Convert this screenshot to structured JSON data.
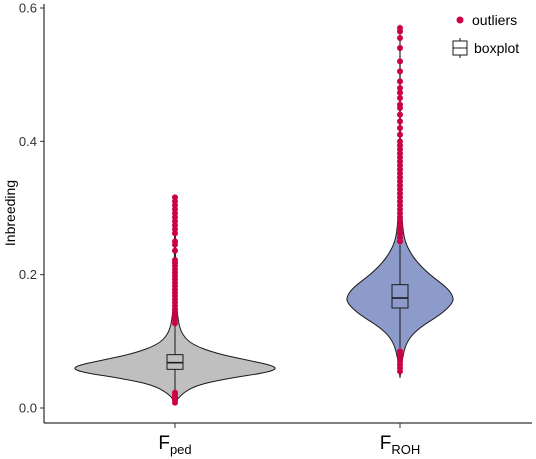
{
  "chart_data": {
    "type": "violin",
    "ylabel": "Inbreeding",
    "ylim": [
      0.0,
      0.6
    ],
    "y_ticks": [
      0.0,
      0.2,
      0.4,
      0.6
    ],
    "y_tick_labels": [
      "0.0",
      "0.2",
      "0.4",
      "0.6"
    ],
    "grid": false,
    "legend_placement": "top-right",
    "legend": [
      {
        "key": "outliers",
        "label": "outliers"
      },
      {
        "key": "boxplot",
        "label": "boxplot"
      }
    ],
    "categories": [
      {
        "main": "F",
        "sub": "ped",
        "fill": "#bfbfbf",
        "min": 0.008,
        "max": 0.32,
        "box": {
          "q1": 0.058,
          "median": 0.068,
          "q3": 0.08,
          "lower_whisker": 0.025,
          "upper_whisker": 0.125
        },
        "density": [
          [
            0.008,
            0.0
          ],
          [
            0.02,
            0.05
          ],
          [
            0.035,
            0.22
          ],
          [
            0.045,
            0.55
          ],
          [
            0.052,
            0.85
          ],
          [
            0.058,
            1.0
          ],
          [
            0.064,
            0.95
          ],
          [
            0.072,
            0.7
          ],
          [
            0.082,
            0.4
          ],
          [
            0.095,
            0.17
          ],
          [
            0.11,
            0.07
          ],
          [
            0.13,
            0.03
          ],
          [
            0.16,
            0.015
          ],
          [
            0.2,
            0.008
          ],
          [
            0.25,
            0.004
          ],
          [
            0.32,
            0.0
          ]
        ],
        "outliers_low": [
          0.008,
          0.012,
          0.016,
          0.02,
          0.023
        ],
        "outliers_high": [
          0.127,
          0.132,
          0.138,
          0.143,
          0.148,
          0.153,
          0.158,
          0.163,
          0.168,
          0.173,
          0.178,
          0.183,
          0.188,
          0.193,
          0.198,
          0.203,
          0.208,
          0.213,
          0.218,
          0.222,
          0.236,
          0.245,
          0.25,
          0.262,
          0.268,
          0.274,
          0.28,
          0.286,
          0.292,
          0.298,
          0.304,
          0.31,
          0.316
        ]
      },
      {
        "main": "F",
        "sub": "ROH",
        "fill": "#8c9bc9",
        "min": 0.045,
        "max": 0.575,
        "box": {
          "q1": 0.15,
          "median": 0.165,
          "q3": 0.185,
          "lower_whisker": 0.09,
          "upper_whisker": 0.245
        },
        "density": [
          [
            0.045,
            0.0
          ],
          [
            0.07,
            0.03
          ],
          [
            0.1,
            0.12
          ],
          [
            0.12,
            0.35
          ],
          [
            0.14,
            0.75
          ],
          [
            0.155,
            0.95
          ],
          [
            0.165,
            1.0
          ],
          [
            0.18,
            0.88
          ],
          [
            0.2,
            0.55
          ],
          [
            0.22,
            0.3
          ],
          [
            0.24,
            0.14
          ],
          [
            0.26,
            0.06
          ],
          [
            0.3,
            0.025
          ],
          [
            0.35,
            0.01
          ],
          [
            0.45,
            0.004
          ],
          [
            0.575,
            0.0
          ]
        ],
        "outliers_low": [
          0.055,
          0.06,
          0.065,
          0.07,
          0.075,
          0.08,
          0.085
        ],
        "outliers_high": [
          0.25,
          0.256,
          0.262,
          0.268,
          0.274,
          0.28,
          0.286,
          0.292,
          0.298,
          0.304,
          0.31,
          0.316,
          0.322,
          0.328,
          0.334,
          0.34,
          0.346,
          0.352,
          0.358,
          0.364,
          0.37,
          0.376,
          0.382,
          0.388,
          0.394,
          0.4,
          0.41,
          0.42,
          0.43,
          0.44,
          0.45,
          0.455,
          0.465,
          0.473,
          0.48,
          0.49,
          0.505,
          0.52,
          0.54,
          0.555,
          0.565,
          0.57
        ]
      }
    ],
    "outlier_color": "#cc0044",
    "outline_color": "#1a1a1a"
  }
}
